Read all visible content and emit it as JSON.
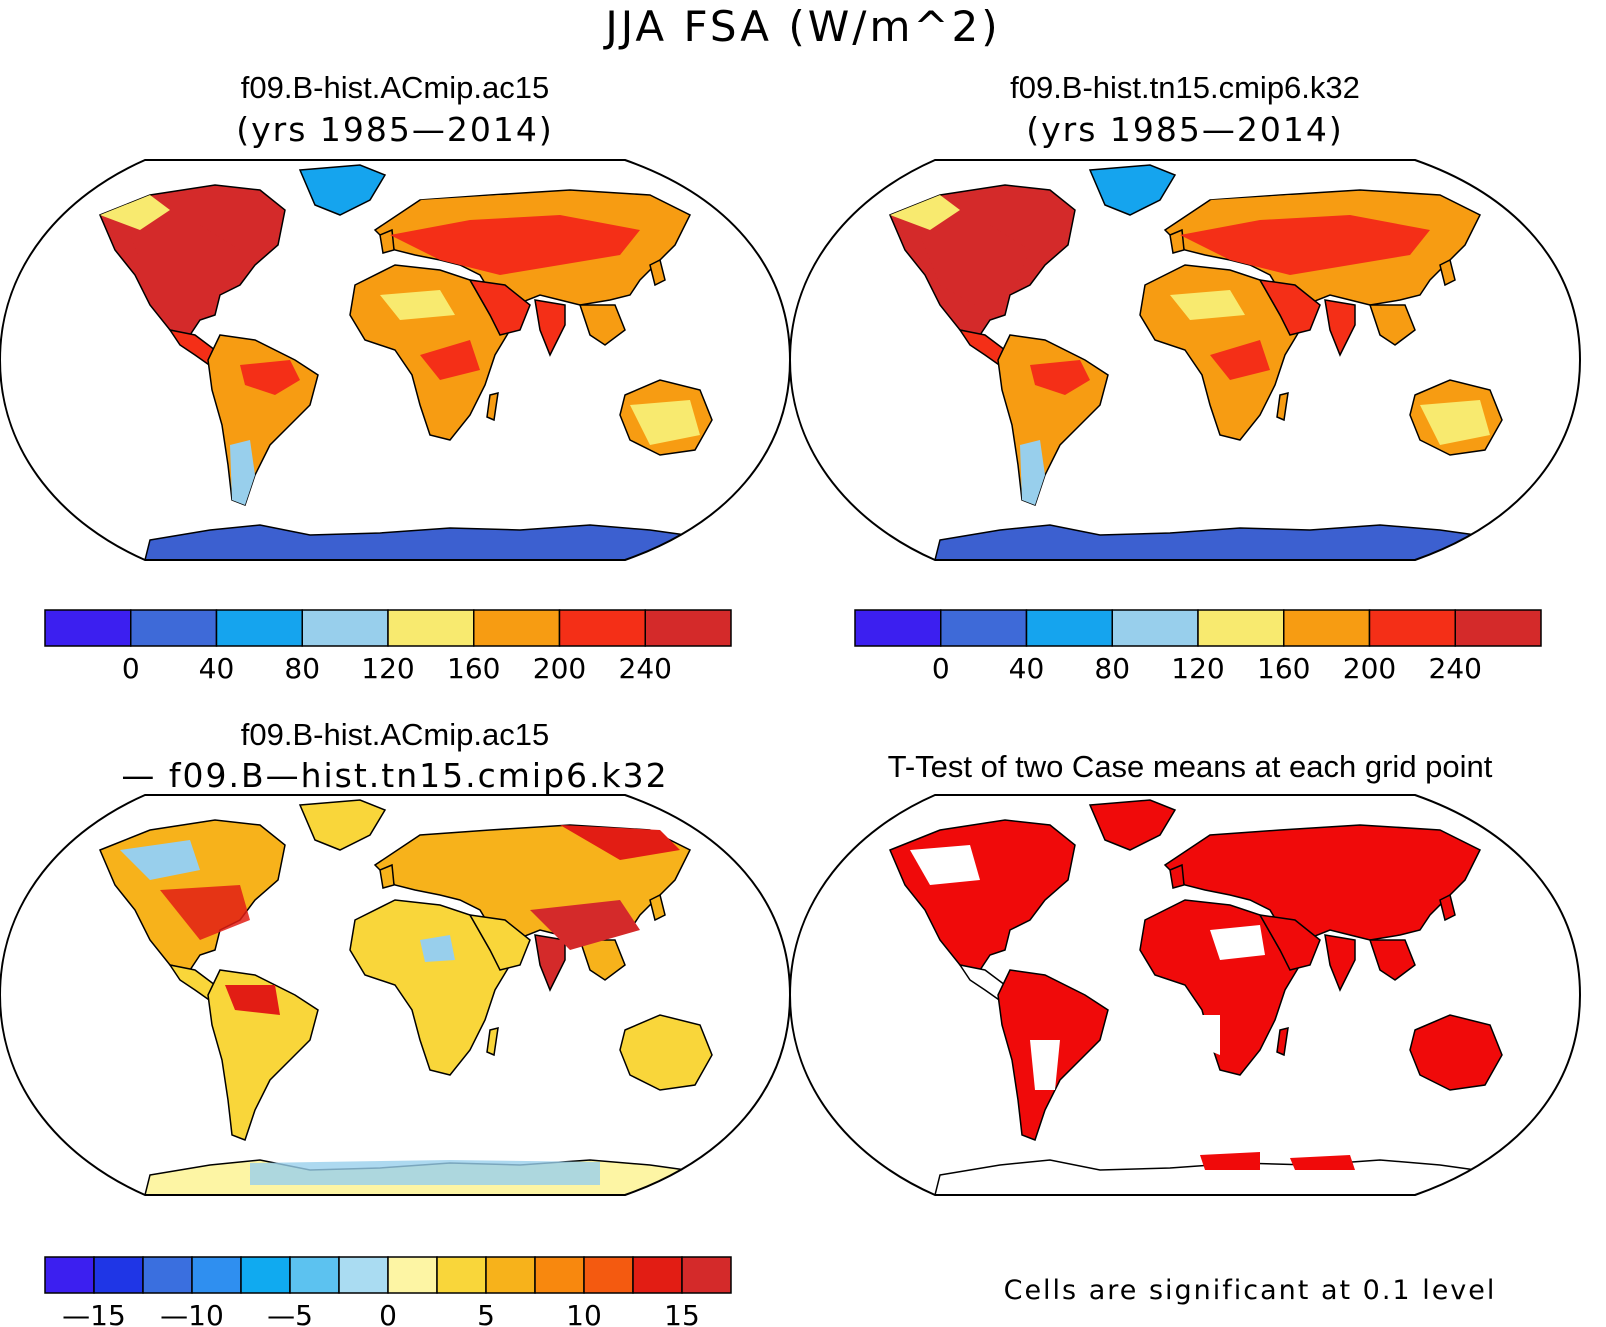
{
  "main_title": "JJA FSA (W/m^2)",
  "panels": [
    {
      "title": "f09.B-hist.ACmip.ac15",
      "subtitle": "(yrs 1985—2014)"
    },
    {
      "title": "f09.B-hist.tn15.cmip6.k32",
      "subtitle": "(yrs 1985—2014)"
    },
    {
      "title": "f09.B-hist.ACmip.ac15",
      "subtitle": "— f09.B—hist.tn15.cmip6.k32"
    },
    {
      "title": "T-Test of two Case means at each grid point",
      "subtitle": ""
    }
  ],
  "colorbar_abs": {
    "colors": [
      "#3c1ff0",
      "#3e6ad8",
      "#15a4ee",
      "#98cfec",
      "#f8ea6f",
      "#f79c12",
      "#f42f17",
      "#d42a2a"
    ],
    "tick_labels": [
      "0",
      "40",
      "80",
      "120",
      "160",
      "200",
      "240"
    ]
  },
  "colorbar_diff": {
    "colors": [
      "#3c1ff0",
      "#1f36e6",
      "#3a6fdf",
      "#2f8ff0",
      "#10aaf0",
      "#5cc2f0",
      "#aadcf2",
      "#fdf5a4",
      "#f9d63a",
      "#f7b21b",
      "#f8880e",
      "#f45a10",
      "#e21d14",
      "#d42a2a"
    ],
    "tick_labels": [
      "—15",
      "—10",
      "—5",
      "0",
      "5",
      "10",
      "15"
    ]
  },
  "footnote": "Cells are significant at 0.1 level",
  "map_colors": {
    "low": "#3e6ad8",
    "vlow": "#3c60d0",
    "mid": "#f79c12",
    "high": "#f42f17",
    "vhigh": "#d42a2a",
    "yellow": "#f8ea6f",
    "light_blue": "#98cfec",
    "blue": "#15a4ee",
    "diff_yellow": "#f9d63a",
    "diff_pale": "#fdf5a4",
    "diff_orange": "#f7b21b",
    "diff_red": "#e21d14",
    "sig_red": "#f00a0a"
  }
}
